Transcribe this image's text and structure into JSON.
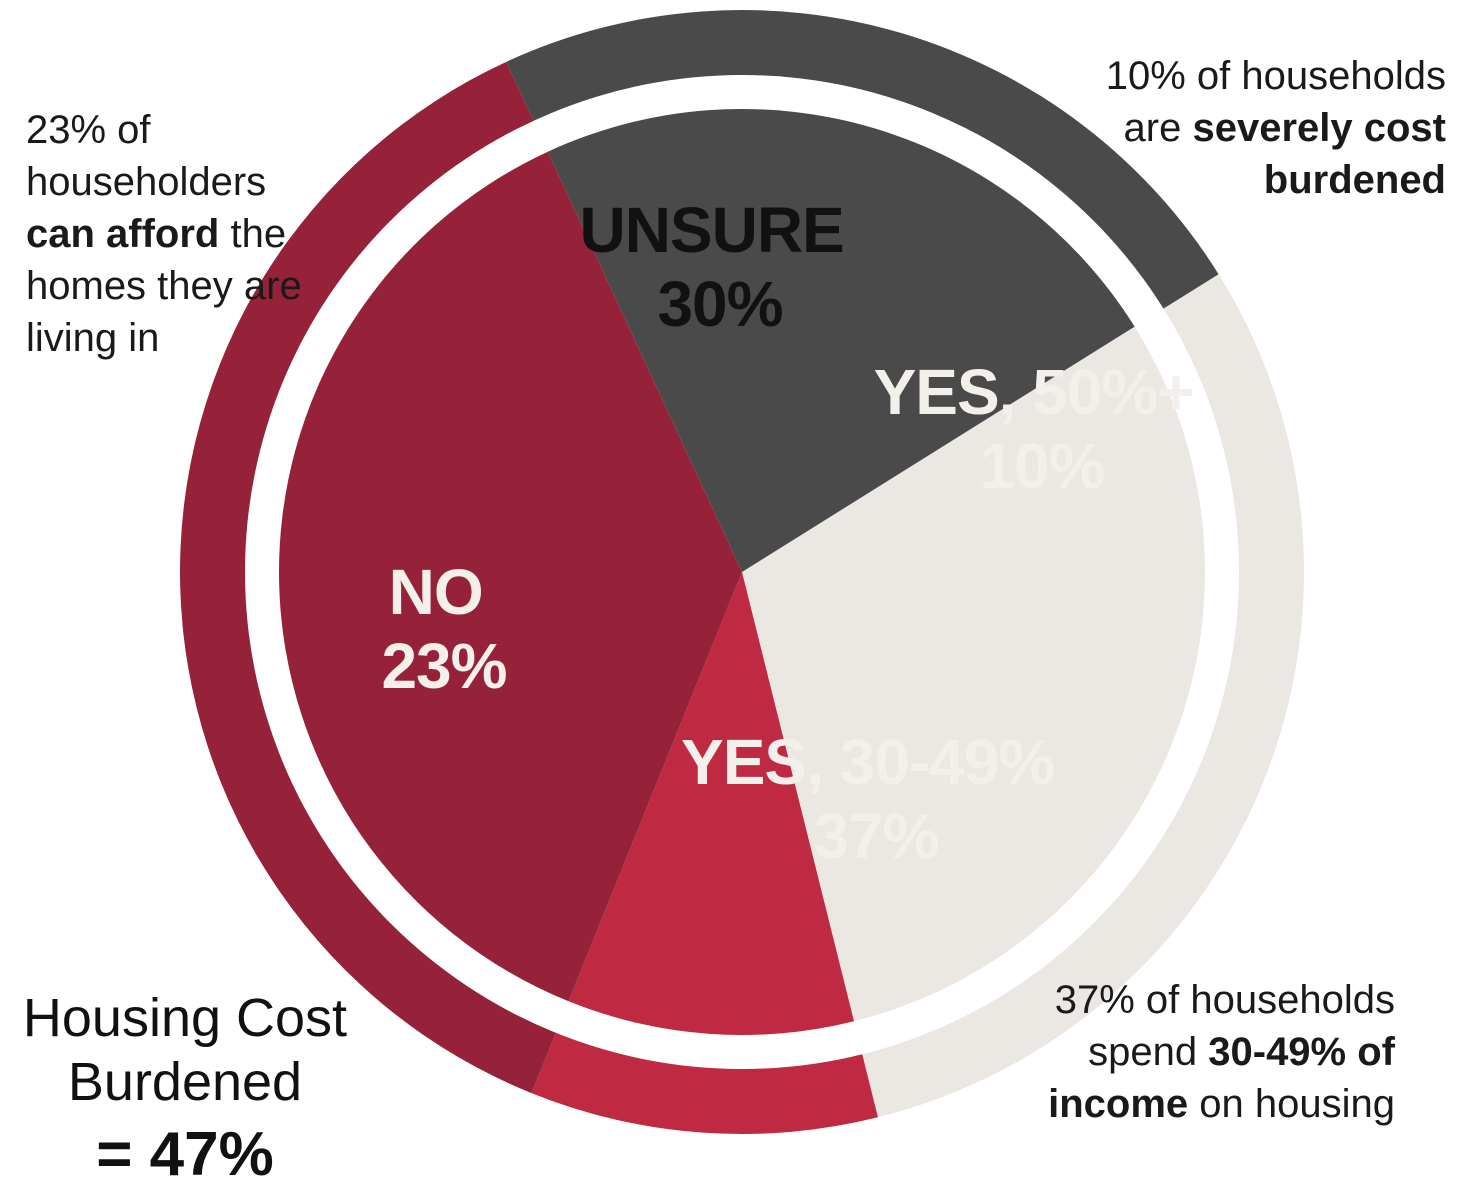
{
  "chart_data": {
    "type": "pie",
    "slices": [
      {
        "key": "unsure",
        "label": "Unsure",
        "value": 30,
        "value_label": "30%",
        "color": "#ebe8e4",
        "text_color": "#111111"
      },
      {
        "key": "yes50",
        "label": "Yes, 50%+",
        "value": 10,
        "value_label": "10%",
        "color": "#bf2a42",
        "text_color": "#f3f0ec"
      },
      {
        "key": "yes30",
        "label": "Yes, 30-49%",
        "value": 37,
        "value_label": "37%",
        "color": "#962239",
        "text_color": "#f3f0ec"
      },
      {
        "key": "no",
        "label": "No",
        "value": 23,
        "value_label": "23%",
        "color": "#4a4a4a",
        "text_color": "#f3f0ec"
      }
    ],
    "start_angle_deg": 58
  },
  "annotations": {
    "left": {
      "pre": "23% of householders ",
      "bold": "can afford",
      "post": " the homes they are living in"
    },
    "right_top": {
      "pre": "10% of households are ",
      "bold": "severely cost burdened",
      "post": ""
    },
    "right_bottom": {
      "pre": "37% of households spend ",
      "bold": "30-49% of income",
      "post": " on housing"
    }
  },
  "summary": {
    "title": "Housing Cost Burdened",
    "value": "= 47%"
  }
}
